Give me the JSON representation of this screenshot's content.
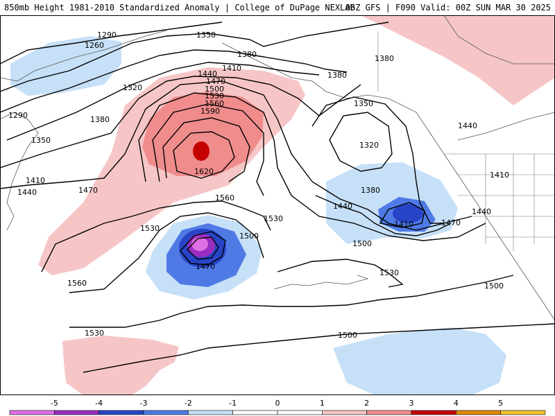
{
  "header": {
    "title_left": "850mb Height 1981-2010 Standardized Anomaly | College of DuPage NEXLAB",
    "title_right": "06Z GFS | F090 Valid: 00Z SUN MAR 30 2025"
  },
  "colors": {
    "anom_neg5": "#e070e6",
    "anom_neg4": "#9a2ec0",
    "anom_neg3": "#2844c6",
    "anom_neg2": "#4f7ae6",
    "anom_neg1": "#c6e0f7",
    "anom_pos1": "#f6c6c6",
    "anom_pos2": "#f08c8c",
    "anom_pos3": "#c60000",
    "anom_pos4": "#e08a00",
    "anom_pos5": "#f2c030"
  },
  "contour_labels": [
    {
      "text": "1290"
    },
    {
      "text": "1260"
    },
    {
      "text": "1350"
    },
    {
      "text": "1380"
    },
    {
      "text": "1320"
    },
    {
      "text": "1410"
    },
    {
      "text": "1290"
    },
    {
      "text": "1380"
    },
    {
      "text": "1350"
    },
    {
      "text": "1440"
    },
    {
      "text": "1470"
    },
    {
      "text": "1500"
    },
    {
      "text": "1530"
    },
    {
      "text": "1560"
    },
    {
      "text": "1590"
    },
    {
      "text": "1620"
    },
    {
      "text": "1470"
    },
    {
      "text": "1410"
    },
    {
      "text": "1440"
    },
    {
      "text": "1560"
    },
    {
      "text": "1530"
    },
    {
      "text": "1530"
    },
    {
      "text": "1500"
    },
    {
      "text": "1470"
    },
    {
      "text": "1560"
    },
    {
      "text": "1530"
    },
    {
      "text": "1380"
    },
    {
      "text": "1380"
    },
    {
      "text": "1350"
    },
    {
      "text": "1320"
    },
    {
      "text": "1380"
    },
    {
      "text": "1440"
    },
    {
      "text": "1410"
    },
    {
      "text": "1470"
    },
    {
      "text": "1500"
    },
    {
      "text": "1530"
    },
    {
      "text": "1500"
    },
    {
      "text": "1500"
    },
    {
      "text": "1440"
    },
    {
      "text": "1410"
    },
    {
      "text": "1440"
    }
  ],
  "colorbar": {
    "ticks": [
      "-5",
      "-4",
      "-3",
      "-2",
      "-1",
      "0",
      "1",
      "2",
      "3",
      "4",
      "5"
    ],
    "bands": [
      "#e070e6",
      "#9a2ec0",
      "#2844c6",
      "#4f7ae6",
      "#c6e0f7",
      "#ffffff",
      "#ffffff",
      "#f6c6c6",
      "#f08c8c",
      "#c60000",
      "#e08a00",
      "#f2c030"
    ]
  }
}
